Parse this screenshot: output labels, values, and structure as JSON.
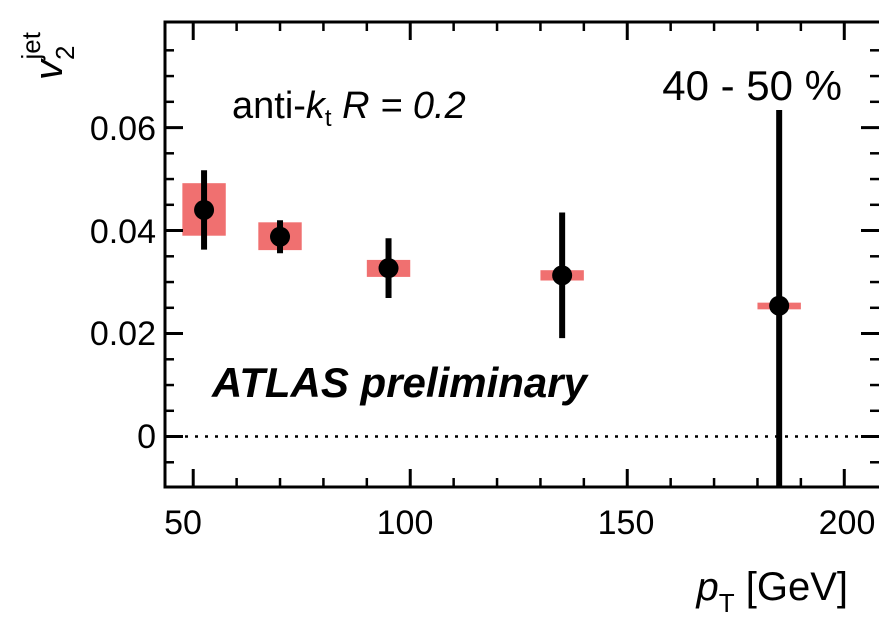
{
  "chart_data": {
    "type": "scatter",
    "x_ticks": [
      50,
      100,
      150,
      200
    ],
    "y_ticks": [
      0,
      0.02,
      0.04,
      0.06
    ],
    "y_tick_labels": [
      "0",
      "0.02",
      "0.04",
      "0.06"
    ],
    "xlim": [
      43.5,
      208
    ],
    "ylim": [
      -0.0098,
      0.0805
    ],
    "xlabel": {
      "main": "p",
      "sub": "T",
      "unit": " [GeV]"
    },
    "ylabel": {
      "main": "v",
      "sub": "2",
      "sup": "jet"
    },
    "annotations": {
      "jet_algo": {
        "prefix": "anti-",
        "k": "k",
        "k_sub": "t",
        "rest": " R = 0.2"
      },
      "centrality": "40 - 50 %",
      "experiment": "ATLAS preliminary"
    },
    "series": [
      {
        "points": [
          {
            "x": 52.5,
            "y": 0.044,
            "stat_err": 0.0077,
            "sys_lo": 0.039,
            "sys_hi": 0.0492,
            "sys_x_half": 5
          },
          {
            "x": 70,
            "y": 0.0388,
            "stat_err": 0.0032,
            "sys_lo": 0.0362,
            "sys_hi": 0.0416,
            "sys_x_half": 5
          },
          {
            "x": 95,
            "y": 0.0327,
            "stat_err": 0.0058,
            "sys_lo": 0.031,
            "sys_hi": 0.0343,
            "sys_x_half": 5
          },
          {
            "x": 135,
            "y": 0.0313,
            "stat_err": 0.0122,
            "sys_lo": 0.0303,
            "sys_hi": 0.0323,
            "sys_x_half": 5
          },
          {
            "x": 185,
            "y": 0.0254,
            "stat_err": 0.038,
            "sys_lo": 0.0247,
            "sys_hi": 0.026,
            "sys_x_half": 5
          }
        ]
      }
    ],
    "reference_line": {
      "y": 0,
      "style": "dotted"
    },
    "colors": {
      "marker": "#000000",
      "sys_box": "#f07070",
      "axis": "#000000"
    }
  }
}
